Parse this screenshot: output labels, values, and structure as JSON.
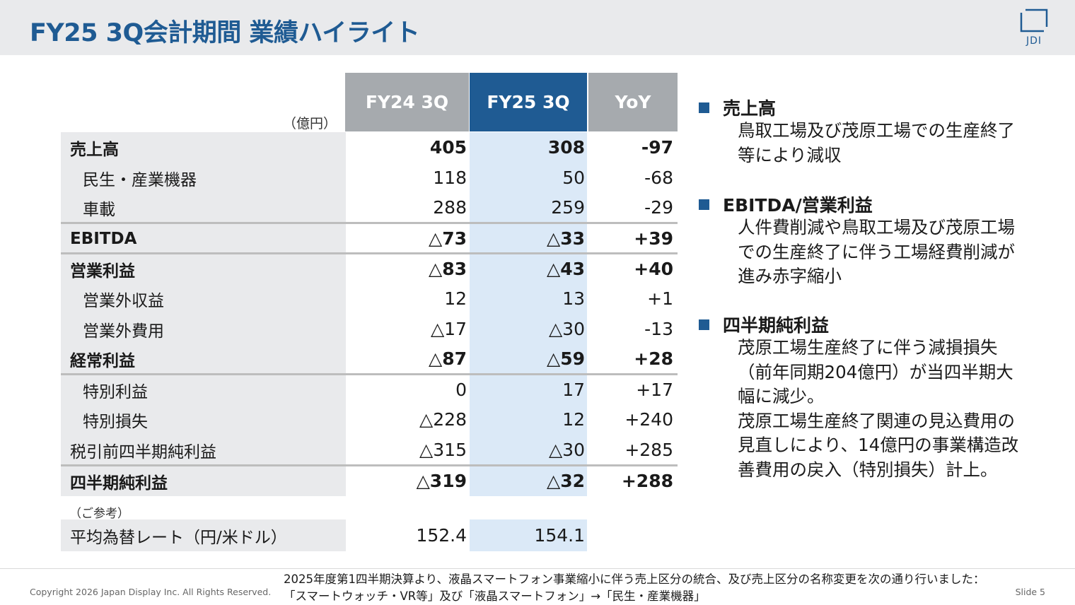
{
  "header": {
    "title": "FY25 3Q会計期間 業績ハイライト",
    "logo_text": "JDI"
  },
  "table": {
    "unit": "（億円）",
    "columns": [
      "FY24 3Q",
      "FY25 3Q",
      "YoY"
    ],
    "rows": [
      {
        "label": "売上高",
        "fy24": "405",
        "fy25": "308",
        "yoy": "-97"
      },
      {
        "label": "民生・産業機器",
        "fy24": "118",
        "fy25": "50",
        "yoy": "-68"
      },
      {
        "label": "車載",
        "fy24": "288",
        "fy25": "259",
        "yoy": "-29"
      },
      {
        "label": "EBITDA",
        "fy24": "△73",
        "fy25": "△33",
        "yoy": "+39"
      },
      {
        "label": "営業利益",
        "fy24": "△83",
        "fy25": "△43",
        "yoy": "+40"
      },
      {
        "label": "営業外収益",
        "fy24": "12",
        "fy25": "13",
        "yoy": "+1"
      },
      {
        "label": "営業外費用",
        "fy24": "△17",
        "fy25": "△30",
        "yoy": "-13"
      },
      {
        "label": "経常利益",
        "fy24": "△87",
        "fy25": "△59",
        "yoy": "+28"
      },
      {
        "label": "特別利益",
        "fy24": "0",
        "fy25": "17",
        "yoy": "+17"
      },
      {
        "label": "特別損失",
        "fy24": "△228",
        "fy25": "12",
        "yoy": "+240"
      },
      {
        "label": "税引前四半期純利益",
        "fy24": "△315",
        "fy25": "△30",
        "yoy": "+285"
      },
      {
        "label": "四半期純利益",
        "fy24": "△319",
        "fy25": "△32",
        "yoy": "+288"
      }
    ],
    "reference_label": "（ご参考）",
    "fx_row": {
      "label": "平均為替レート（円/米ドル）",
      "fy24": "152.4",
      "fy25": "154.1"
    }
  },
  "highlights": [
    {
      "title": "売上高",
      "lines": [
        "鳥取工場及び茂原工場での生産終了等により減収"
      ]
    },
    {
      "title": "EBITDA/営業利益",
      "lines": [
        "人件費削減や鳥取工場及び茂原工場での生産終了に伴う工場経費削減が進み赤字縮小"
      ]
    },
    {
      "title": "四半期純利益",
      "lines": [
        "茂原工場生産終了に伴う減損損失（前年同期204億円）が当四半期大幅に減少。",
        "茂原工場生産終了関連の見込費用の見直しにより、14億円の事業構造改善費用の戻入（特別損失）計上。"
      ]
    }
  ],
  "footer": {
    "copyright": "Copyright 2026 Japan Display Inc. All Rights Reserved.",
    "note_line1": "2025年度第1四半期決算より、液晶スマートフォン事業縮小に伴う売上区分の統合、及び売上区分の名称変更を次の通り行いました：",
    "note_line2": "「スマートウォッチ・VR等」及び「液晶スマートフォン」→「民生・産業機器」",
    "slide": "Slide 5"
  },
  "colors": {
    "brand_blue": "#1f5b93",
    "header_gray": "#a6aaae",
    "label_bg": "#e9eaec",
    "highlight_col": "#dbe9f7"
  }
}
